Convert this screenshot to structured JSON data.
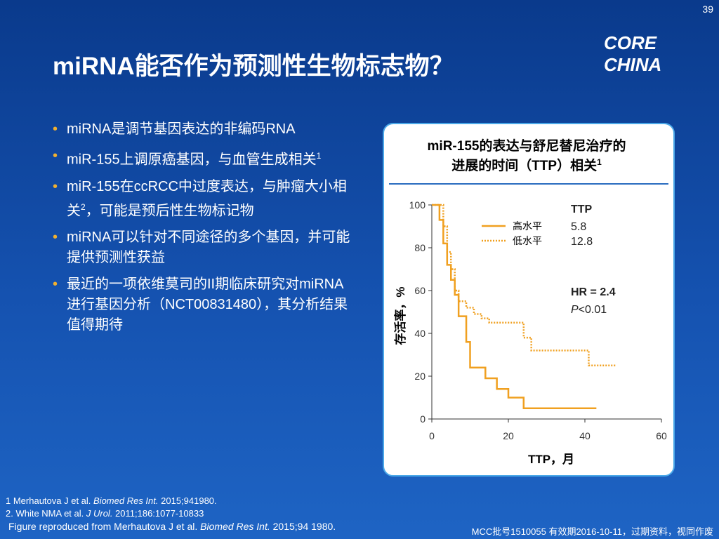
{
  "page_number": "39",
  "logo": "CORE CHINA",
  "title": "miRNA能否作为预测性生物标志物？",
  "bullets": [
    [
      "miRNA是调节基因表达的非编码RNA"
    ],
    [
      "miR-155上调原癌基因，与血管生成相关",
      "1"
    ],
    [
      "miR-155在ccRCC中过度表达，与肿瘤大小相关",
      "2",
      "，可能是预后性生物标记物"
    ],
    [
      "miRNA可以针对不同途径的多个基因，并可能提供预测性获益"
    ],
    [
      "最近的一项依维莫司的II期临床研究对miRNA进行基因分析（NCT00831480），其分析结果值得期待"
    ]
  ],
  "footnotes": [
    [
      "1 Merhautova J et al. ",
      "Biomed Res Int.",
      " 2015;941980."
    ],
    [
      "2. White NMA et al. ",
      "J Urol.",
      " 2011;186:1077-10833"
    ],
    [
      "Figure reproduced from Merhautova J et al. ",
      "Biomed Res Int.",
      " 2015;94 1980."
    ]
  ],
  "disclaimer": "MCC批号1510055 有效期2016-10-11，过期资料，视同作废",
  "chart_data": {
    "type": "line",
    "title": "miR-155的表达与舒尼替尼治疗的进展的时间（TTP）相关",
    "title_sup": "1",
    "x_label": "TTP，月",
    "y_label": "存活率，%",
    "xlim": [
      0,
      60
    ],
    "xticks": [
      0,
      20,
      40,
      60
    ],
    "ylim": [
      0,
      100
    ],
    "yticks": [
      0,
      20,
      40,
      60,
      80,
      100
    ],
    "ttp_header": "TTP",
    "hr": "HR = 2.4",
    "p_symbol": "P",
    "p_value": "<0.01",
    "series": [
      {
        "name": "高水平",
        "color": "#f0a020",
        "style": "solid",
        "ttp": "5.8",
        "x": [
          0,
          2,
          2,
          3,
          3,
          4,
          4,
          5,
          5,
          6,
          6,
          7,
          7,
          9,
          9,
          10,
          10,
          14,
          14,
          17,
          17,
          20,
          20,
          24,
          24,
          43
        ],
        "values": [
          100,
          100,
          93,
          93,
          82,
          82,
          72,
          72,
          65,
          65,
          58,
          58,
          48,
          48,
          36,
          36,
          24,
          24,
          19,
          19,
          14,
          14,
          10,
          10,
          5,
          5
        ]
      },
      {
        "name": "低水平",
        "color": "#f0a020",
        "style": "dotted",
        "ttp": "12.8",
        "x": [
          0,
          3,
          3,
          4,
          4,
          5,
          5,
          6,
          6,
          7,
          7,
          9,
          9,
          11,
          11,
          13,
          13,
          15,
          15,
          24,
          24,
          26,
          26,
          41,
          41,
          48
        ],
        "values": [
          100,
          100,
          90,
          90,
          78,
          78,
          70,
          70,
          60,
          60,
          55,
          55,
          52,
          52,
          49,
          49,
          47,
          47,
          45,
          45,
          38,
          38,
          32,
          32,
          25,
          25
        ]
      }
    ]
  }
}
